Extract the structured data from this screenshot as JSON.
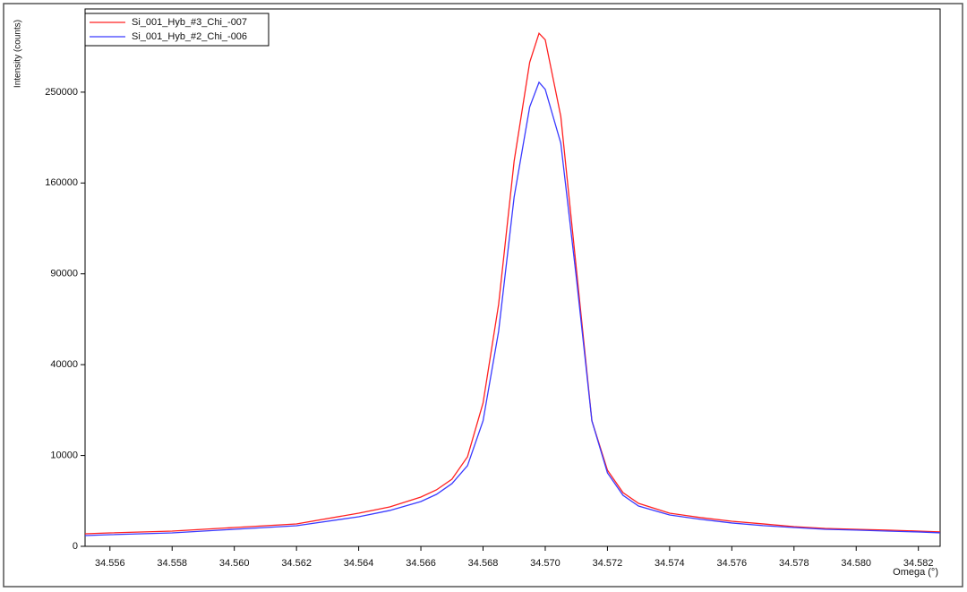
{
  "chart_data": {
    "type": "line",
    "y_label": "Intensity (counts)",
    "x_label": "Omega (°)",
    "yscale": "sqrt",
    "xlim": [
      34.5552,
      34.5827
    ],
    "ylim": [
      0,
      350000
    ],
    "xticks": [
      34.556,
      34.558,
      {
        "value": 34.56,
        "label": "34.560"
      },
      34.562,
      34.564,
      34.566,
      34.568,
      {
        "value": 34.57,
        "label": "34.570"
      },
      34.572,
      34.574,
      34.576,
      34.578,
      {
        "value": 34.58,
        "label": "34.580"
      },
      34.582
    ],
    "yticks": [
      0,
      10000,
      40000,
      90000,
      160000,
      250000
    ],
    "x": [
      34.5552,
      34.556,
      34.558,
      34.56,
      34.562,
      34.564,
      34.565,
      34.566,
      34.5665,
      34.567,
      34.5675,
      34.568,
      34.5685,
      34.569,
      34.5695,
      34.5698,
      34.57,
      34.5705,
      34.571,
      34.5715,
      34.572,
      34.5725,
      34.573,
      34.574,
      34.575,
      34.576,
      34.577,
      34.578,
      34.579,
      34.58,
      34.581,
      34.582,
      34.5827
    ],
    "series": [
      {
        "name": "Si_001_Hyb_#3_Chi_-007",
        "color": "#ff2020",
        "values": [
          190,
          219,
          281,
          429,
          608,
          1330,
          1880,
          2940,
          3860,
          5470,
          9730,
          24900,
          70900,
          180000,
          284000,
          319000,
          311000,
          224000,
          93500,
          19100,
          7030,
          3500,
          2240,
          1330,
          1000,
          760,
          610,
          470,
          390,
          350,
          320,
          280,
          250
        ]
      },
      {
        "name": "Si_001_Hyb_#2_Chi_-006",
        "color": "#3a3aff",
        "values": [
          140,
          164,
          219,
          351,
          515,
          1060,
          1560,
          2430,
          3270,
          4770,
          7880,
          19100,
          56000,
          148000,
          234000,
          261000,
          253000,
          197000,
          87500,
          19100,
          6540,
          3160,
          1970,
          1190,
          880,
          660,
          520,
          430,
          350,
          320,
          280,
          250,
          220
        ]
      }
    ],
    "legend": "top-left"
  }
}
